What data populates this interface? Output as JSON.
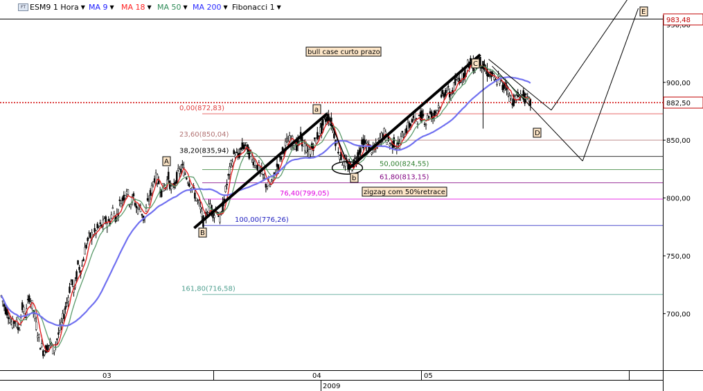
{
  "toolbar": {
    "symbol": "ESM9 1 Hora",
    "indicators": [
      {
        "label": "MA 9",
        "color": "#1a1aff"
      },
      {
        "label": "MA 18",
        "color": "#ff2020"
      },
      {
        "label": "MA 50",
        "color": "#2e8b57"
      },
      {
        "label": "MA 200",
        "color": "#2a2aff"
      },
      {
        "label": "Fibonacci 1",
        "color": "#000000"
      }
    ]
  },
  "chart_data": {
    "type": "candlestick",
    "title": "",
    "xlabel": "2009",
    "ylabel": "",
    "x_ticks": [
      "03",
      "04",
      "05"
    ],
    "y_ticks": [
      700,
      750,
      800,
      850,
      900,
      950
    ],
    "ylim": [
      645,
      990
    ],
    "last_price": "983,48",
    "current_price": "882,50",
    "fibonacci_levels": [
      {
        "label": "0,00(872,83)",
        "value": 872.83,
        "color": "#e04040"
      },
      {
        "label": "23,60(850,04)",
        "value": 850.04,
        "color": "#b07070"
      },
      {
        "label": "38,20(835,94)",
        "value": 835.94,
        "color": "#000000"
      },
      {
        "label": "50,00(824,55)",
        "value": 824.55,
        "color": "#2f7f2f"
      },
      {
        "label": "61,80(813,15)",
        "value": 813.15,
        "color": "#800080"
      },
      {
        "label": "76,40(799,05)",
        "value": 799.05,
        "color": "#e000e0"
      },
      {
        "label": "100,00(776,26)",
        "value": 776.26,
        "color": "#2020c0"
      },
      {
        "label": "161,80(716,58)",
        "value": 716.58,
        "color": "#4f9f8f"
      }
    ],
    "wave_labels": [
      "A",
      "B",
      "C",
      "D",
      "E",
      "a",
      "b"
    ],
    "annotations": [
      "bull case curto prazo",
      "zigzag com 50%retrace"
    ],
    "price_path": [
      [
        0,
        715
      ],
      [
        5,
        705
      ],
      [
        10,
        700
      ],
      [
        15,
        690
      ],
      [
        20,
        695
      ],
      [
        25,
        685
      ],
      [
        30,
        705
      ],
      [
        35,
        698
      ],
      [
        40,
        715
      ],
      [
        45,
        705
      ],
      [
        50,
        690
      ],
      [
        55,
        675
      ],
      [
        60,
        668
      ],
      [
        65,
        670
      ],
      [
        70,
        675
      ],
      [
        75,
        668
      ],
      [
        80,
        678
      ],
      [
        85,
        688
      ],
      [
        90,
        700
      ],
      [
        95,
        712
      ],
      [
        100,
        728
      ],
      [
        105,
        720
      ],
      [
        110,
        742
      ],
      [
        115,
        738
      ],
      [
        120,
        755
      ],
      [
        125,
        765
      ],
      [
        130,
        768
      ],
      [
        135,
        770
      ],
      [
        140,
        775
      ],
      [
        145,
        776
      ],
      [
        150,
        780
      ],
      [
        155,
        778
      ],
      [
        160,
        790
      ],
      [
        165,
        782
      ],
      [
        170,
        795
      ],
      [
        175,
        800
      ],
      [
        180,
        808
      ],
      [
        185,
        795
      ],
      [
        190,
        800
      ],
      [
        195,
        790
      ],
      [
        200,
        792
      ],
      [
        205,
        780
      ],
      [
        210,
        795
      ],
      [
        215,
        805
      ],
      [
        220,
        818
      ],
      [
        225,
        815
      ],
      [
        230,
        806
      ],
      [
        235,
        810
      ],
      [
        240,
        818
      ],
      [
        245,
        805
      ],
      [
        250,
        815
      ],
      [
        255,
        822
      ],
      [
        260,
        826
      ],
      [
        265,
        820
      ],
      [
        270,
        814
      ],
      [
        275,
        808
      ],
      [
        280,
        800
      ],
      [
        285,
        792
      ],
      [
        290,
        780
      ],
      [
        295,
        786
      ],
      [
        300,
        795
      ],
      [
        305,
        786
      ],
      [
        310,
        790
      ],
      [
        315,
        780
      ],
      [
        320,
        800
      ],
      [
        325,
        815
      ],
      [
        330,
        828
      ],
      [
        335,
        840
      ],
      [
        340,
        835
      ],
      [
        345,
        843
      ],
      [
        350,
        846
      ],
      [
        355,
        840
      ],
      [
        360,
        835
      ],
      [
        365,
        830
      ],
      [
        370,
        826
      ],
      [
        375,
        820
      ],
      [
        380,
        812
      ],
      [
        385,
        810
      ],
      [
        390,
        814
      ],
      [
        395,
        826
      ],
      [
        400,
        832
      ],
      [
        405,
        842
      ],
      [
        410,
        848
      ],
      [
        415,
        850
      ],
      [
        420,
        848
      ],
      [
        425,
        845
      ],
      [
        430,
        852
      ],
      [
        435,
        846
      ],
      [
        440,
        838
      ],
      [
        445,
        842
      ],
      [
        450,
        848
      ],
      [
        455,
        855
      ],
      [
        460,
        860
      ],
      [
        465,
        868
      ],
      [
        470,
        870
      ],
      [
        475,
        864
      ],
      [
        480,
        850
      ],
      [
        485,
        840
      ],
      [
        490,
        832
      ],
      [
        495,
        830
      ],
      [
        500,
        826
      ],
      [
        505,
        828
      ],
      [
        510,
        835
      ],
      [
        515,
        842
      ],
      [
        520,
        848
      ],
      [
        525,
        845
      ],
      [
        530,
        843
      ],
      [
        535,
        840
      ],
      [
        540,
        846
      ],
      [
        545,
        852
      ],
      [
        550,
        856
      ],
      [
        555,
        850
      ],
      [
        560,
        846
      ],
      [
        565,
        848
      ],
      [
        570,
        844
      ],
      [
        575,
        852
      ],
      [
        580,
        858
      ],
      [
        585,
        862
      ],
      [
        590,
        866
      ],
      [
        595,
        870
      ],
      [
        600,
        868
      ],
      [
        605,
        872
      ],
      [
        610,
        866
      ],
      [
        615,
        874
      ],
      [
        620,
        870
      ],
      [
        625,
        876
      ],
      [
        630,
        882
      ],
      [
        635,
        890
      ],
      [
        640,
        894
      ],
      [
        645,
        888
      ],
      [
        650,
        896
      ],
      [
        655,
        902
      ],
      [
        660,
        904
      ],
      [
        665,
        908
      ],
      [
        670,
        915
      ],
      [
        675,
        918
      ],
      [
        680,
        912
      ],
      [
        685,
        920
      ],
      [
        690,
        916
      ],
      [
        695,
        910
      ],
      [
        700,
        908
      ],
      [
        705,
        905
      ],
      [
        710,
        900
      ],
      [
        715,
        904
      ],
      [
        720,
        895
      ],
      [
        725,
        900
      ],
      [
        730,
        888
      ],
      [
        735,
        884
      ],
      [
        740,
        886
      ],
      [
        745,
        890
      ],
      [
        750,
        888
      ],
      [
        755,
        884
      ],
      [
        760,
        882
      ]
    ]
  }
}
